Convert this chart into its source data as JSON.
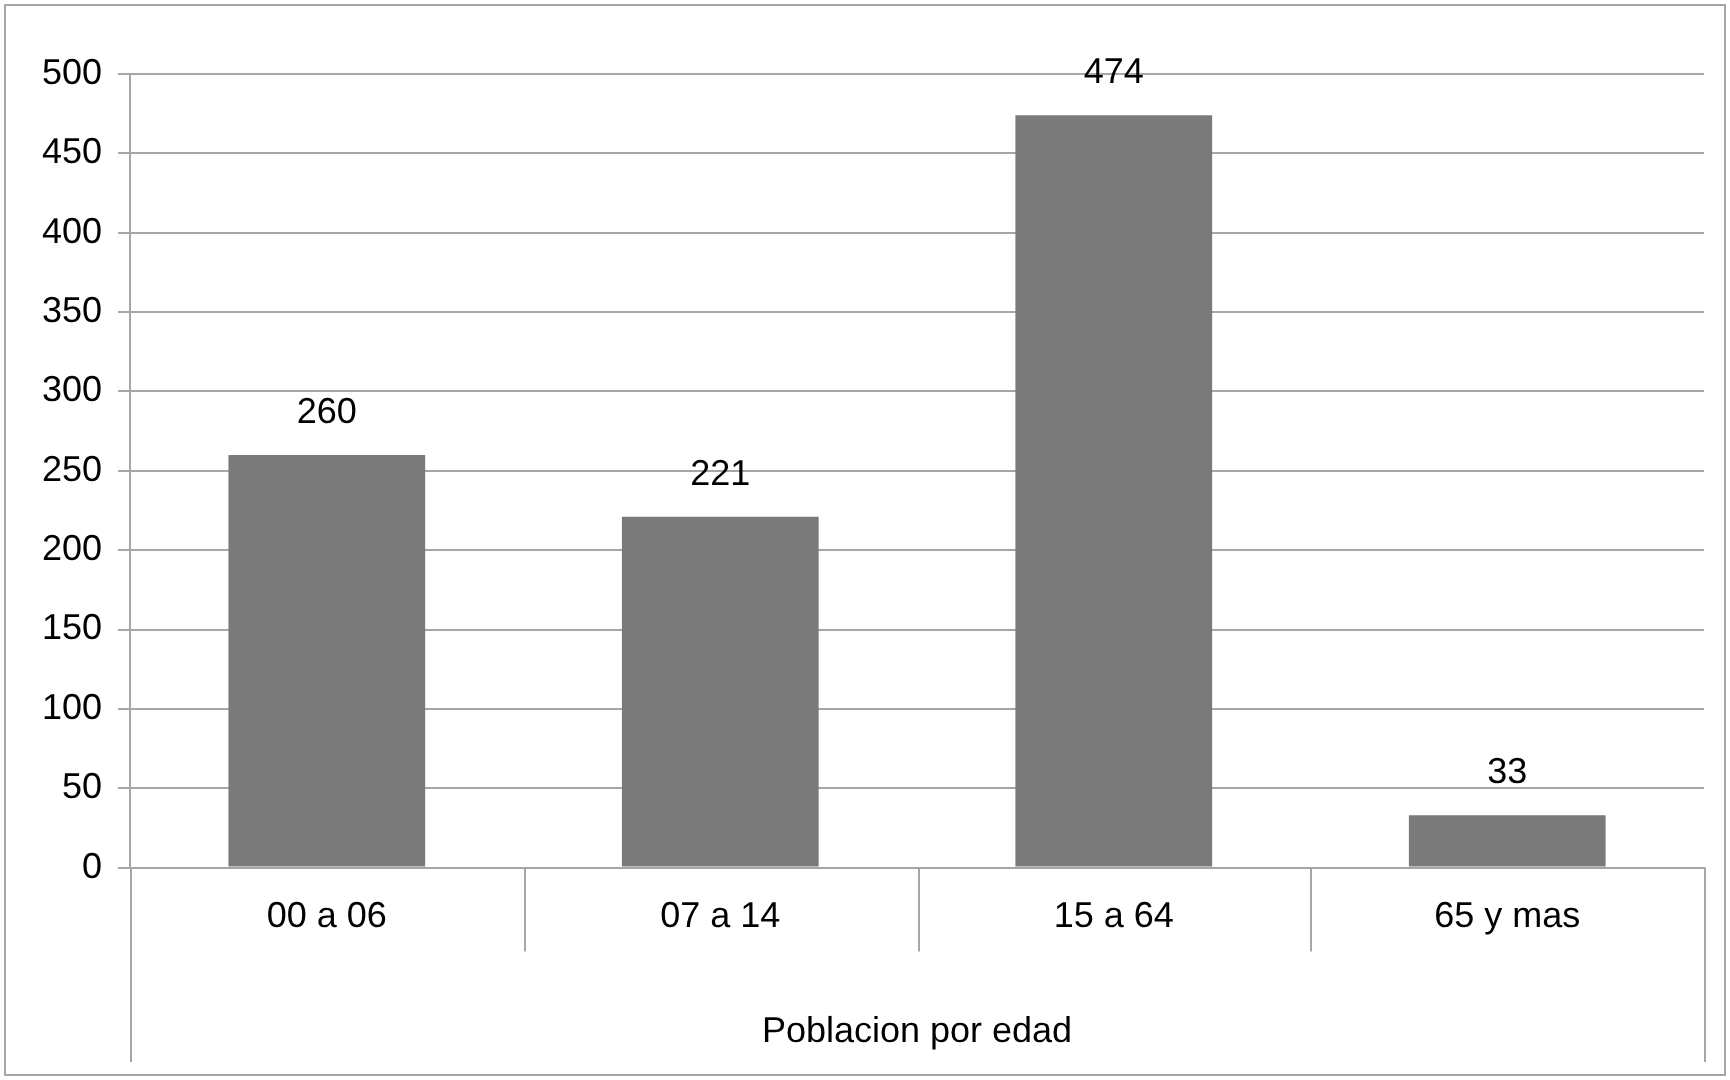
{
  "chart_data": {
    "type": "bar",
    "xlabel": "Poblacion por edad",
    "categories": [
      "00 a 06",
      "07 a 14",
      "15 a 64",
      "65 y mas"
    ],
    "values": [
      260,
      221,
      474,
      33
    ],
    "color": "#7a7a7a",
    "ylim": [
      0,
      500
    ],
    "yticks": [
      0,
      50,
      100,
      150,
      200,
      250,
      300,
      350,
      400,
      450,
      500
    ],
    "grid": "y",
    "data_labels": true,
    "legend": false
  }
}
